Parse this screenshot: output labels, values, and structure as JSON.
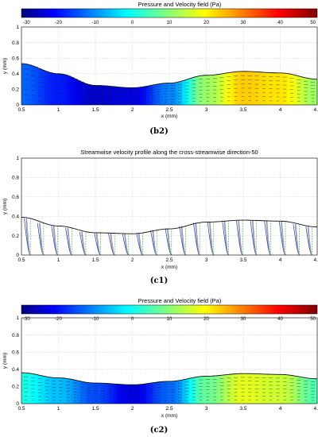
{
  "chart_data": [
    {
      "id": "b2",
      "type": "heatmap",
      "title": "Pressure and Velocity field (Pa)",
      "caption": "(b2)",
      "xlabel": "x (mm)",
      "ylabel": "y (mm)",
      "xlim": [
        0.5,
        4.5
      ],
      "ylim": [
        0,
        1
      ],
      "xticks": [
        0.5,
        1,
        1.5,
        2,
        2.5,
        3,
        3.5,
        4,
        4.5
      ],
      "yticks": [
        0,
        0.2,
        0.4,
        0.6,
        0.8,
        1
      ],
      "xtick_labels": [
        "0.5",
        "1",
        "1.5",
        "2",
        "2.5",
        "3",
        "3.5",
        "4",
        "4.5"
      ],
      "ytick_labels": [
        "0",
        "0.2",
        "0.4",
        "0.6",
        "0.8",
        "1"
      ],
      "grid": true,
      "colorbar": {
        "placement": "top",
        "range": [
          -30,
          50
        ],
        "ticks": [
          -30,
          -20,
          -10,
          0,
          10,
          20,
          30,
          40,
          50
        ],
        "tick_labels": [
          "-30",
          "-20",
          "-10",
          "0",
          "10",
          "20",
          "30",
          "40",
          "50"
        ]
      },
      "wall_profile": {
        "x": [
          0.5,
          1.0,
          1.5,
          2.0,
          2.5,
          3.0,
          3.5,
          4.0,
          4.5
        ],
        "y": [
          0.53,
          0.4,
          0.25,
          0.22,
          0.28,
          0.38,
          0.43,
          0.41,
          0.33
        ]
      },
      "field_pressure": {
        "x": [
          0.5,
          1.0,
          1.5,
          2.0,
          2.5,
          3.0,
          3.5,
          4.0,
          4.5
        ],
        "p": [
          -12,
          -18,
          -24,
          -22,
          -10,
          12,
          24,
          22,
          12
        ]
      }
    },
    {
      "id": "c1",
      "type": "line",
      "title": "Streamwise velocity profile along the cross-streamwise direction-50",
      "caption": "(c1)",
      "xlabel": "x (mm)",
      "ylabel": "y (mm)",
      "xlim": [
        0.5,
        4.5
      ],
      "ylim": [
        0,
        1
      ],
      "xticks": [
        0.5,
        1,
        1.5,
        2,
        2.5,
        3,
        3.5,
        4,
        4.5
      ],
      "yticks": [
        0,
        0.2,
        0.4,
        0.6,
        0.8,
        1
      ],
      "xtick_labels": [
        "0.5",
        "1",
        "1.5",
        "2",
        "2.5",
        "3",
        "3.5",
        "4",
        "4.5"
      ],
      "ytick_labels": [
        "0",
        "0.2",
        "0.4",
        "0.6",
        "0.8",
        "1"
      ],
      "grid": true,
      "wall_profile": {
        "x": [
          0.5,
          1.0,
          1.5,
          2.0,
          2.5,
          3.0,
          3.5,
          4.0,
          4.5
        ],
        "y": [
          0.39,
          0.3,
          0.23,
          0.22,
          0.27,
          0.34,
          0.36,
          0.35,
          0.29
        ]
      },
      "profile_stations": [
        0.62,
        0.8,
        0.99,
        1.18,
        1.37,
        1.57,
        1.76,
        1.95,
        2.14,
        2.33,
        2.53,
        2.72,
        2.91,
        3.1,
        3.3,
        3.49,
        3.68,
        3.87,
        4.07,
        4.26,
        4.43
      ]
    },
    {
      "id": "c2",
      "type": "heatmap",
      "title": "Pressure and Velocity field (Pa)",
      "caption": "(c2)",
      "xlabel": "x (mm)",
      "ylabel": "y (mm)",
      "xlim": [
        0.5,
        4.5
      ],
      "ylim": [
        0,
        1
      ],
      "xticks": [
        0.5,
        1,
        1.5,
        2,
        2.5,
        3,
        3.5,
        4,
        4.5
      ],
      "yticks": [
        0,
        0.2,
        0.4,
        0.6,
        0.8,
        1
      ],
      "xtick_labels": [
        "0.5",
        "1",
        "1.5",
        "2",
        "2.5",
        "3",
        "3.5",
        "4",
        "4.5"
      ],
      "ytick_labels": [
        "0",
        "0.2",
        "0.4",
        "0.6",
        "0.8",
        "1"
      ],
      "grid": true,
      "colorbar": {
        "placement": "top",
        "range": [
          -30,
          50
        ],
        "ticks": [
          -30,
          -20,
          -10,
          0,
          10,
          20,
          30,
          40,
          50
        ],
        "tick_labels": [
          "-30",
          "-20",
          "-10",
          "0",
          "10",
          "20",
          "30",
          "40",
          "50"
        ]
      },
      "wall_profile": {
        "x": [
          0.5,
          1.0,
          1.5,
          2.0,
          2.5,
          3.0,
          3.5,
          4.0,
          4.5
        ],
        "y": [
          0.36,
          0.3,
          0.24,
          0.22,
          0.26,
          0.32,
          0.35,
          0.34,
          0.29
        ]
      },
      "field_pressure": {
        "x": [
          0.5,
          1.0,
          1.5,
          2.0,
          2.5,
          3.0,
          3.5,
          4.0,
          4.5
        ],
        "p": [
          2,
          -5,
          -14,
          -22,
          -12,
          8,
          18,
          16,
          6
        ]
      }
    }
  ]
}
